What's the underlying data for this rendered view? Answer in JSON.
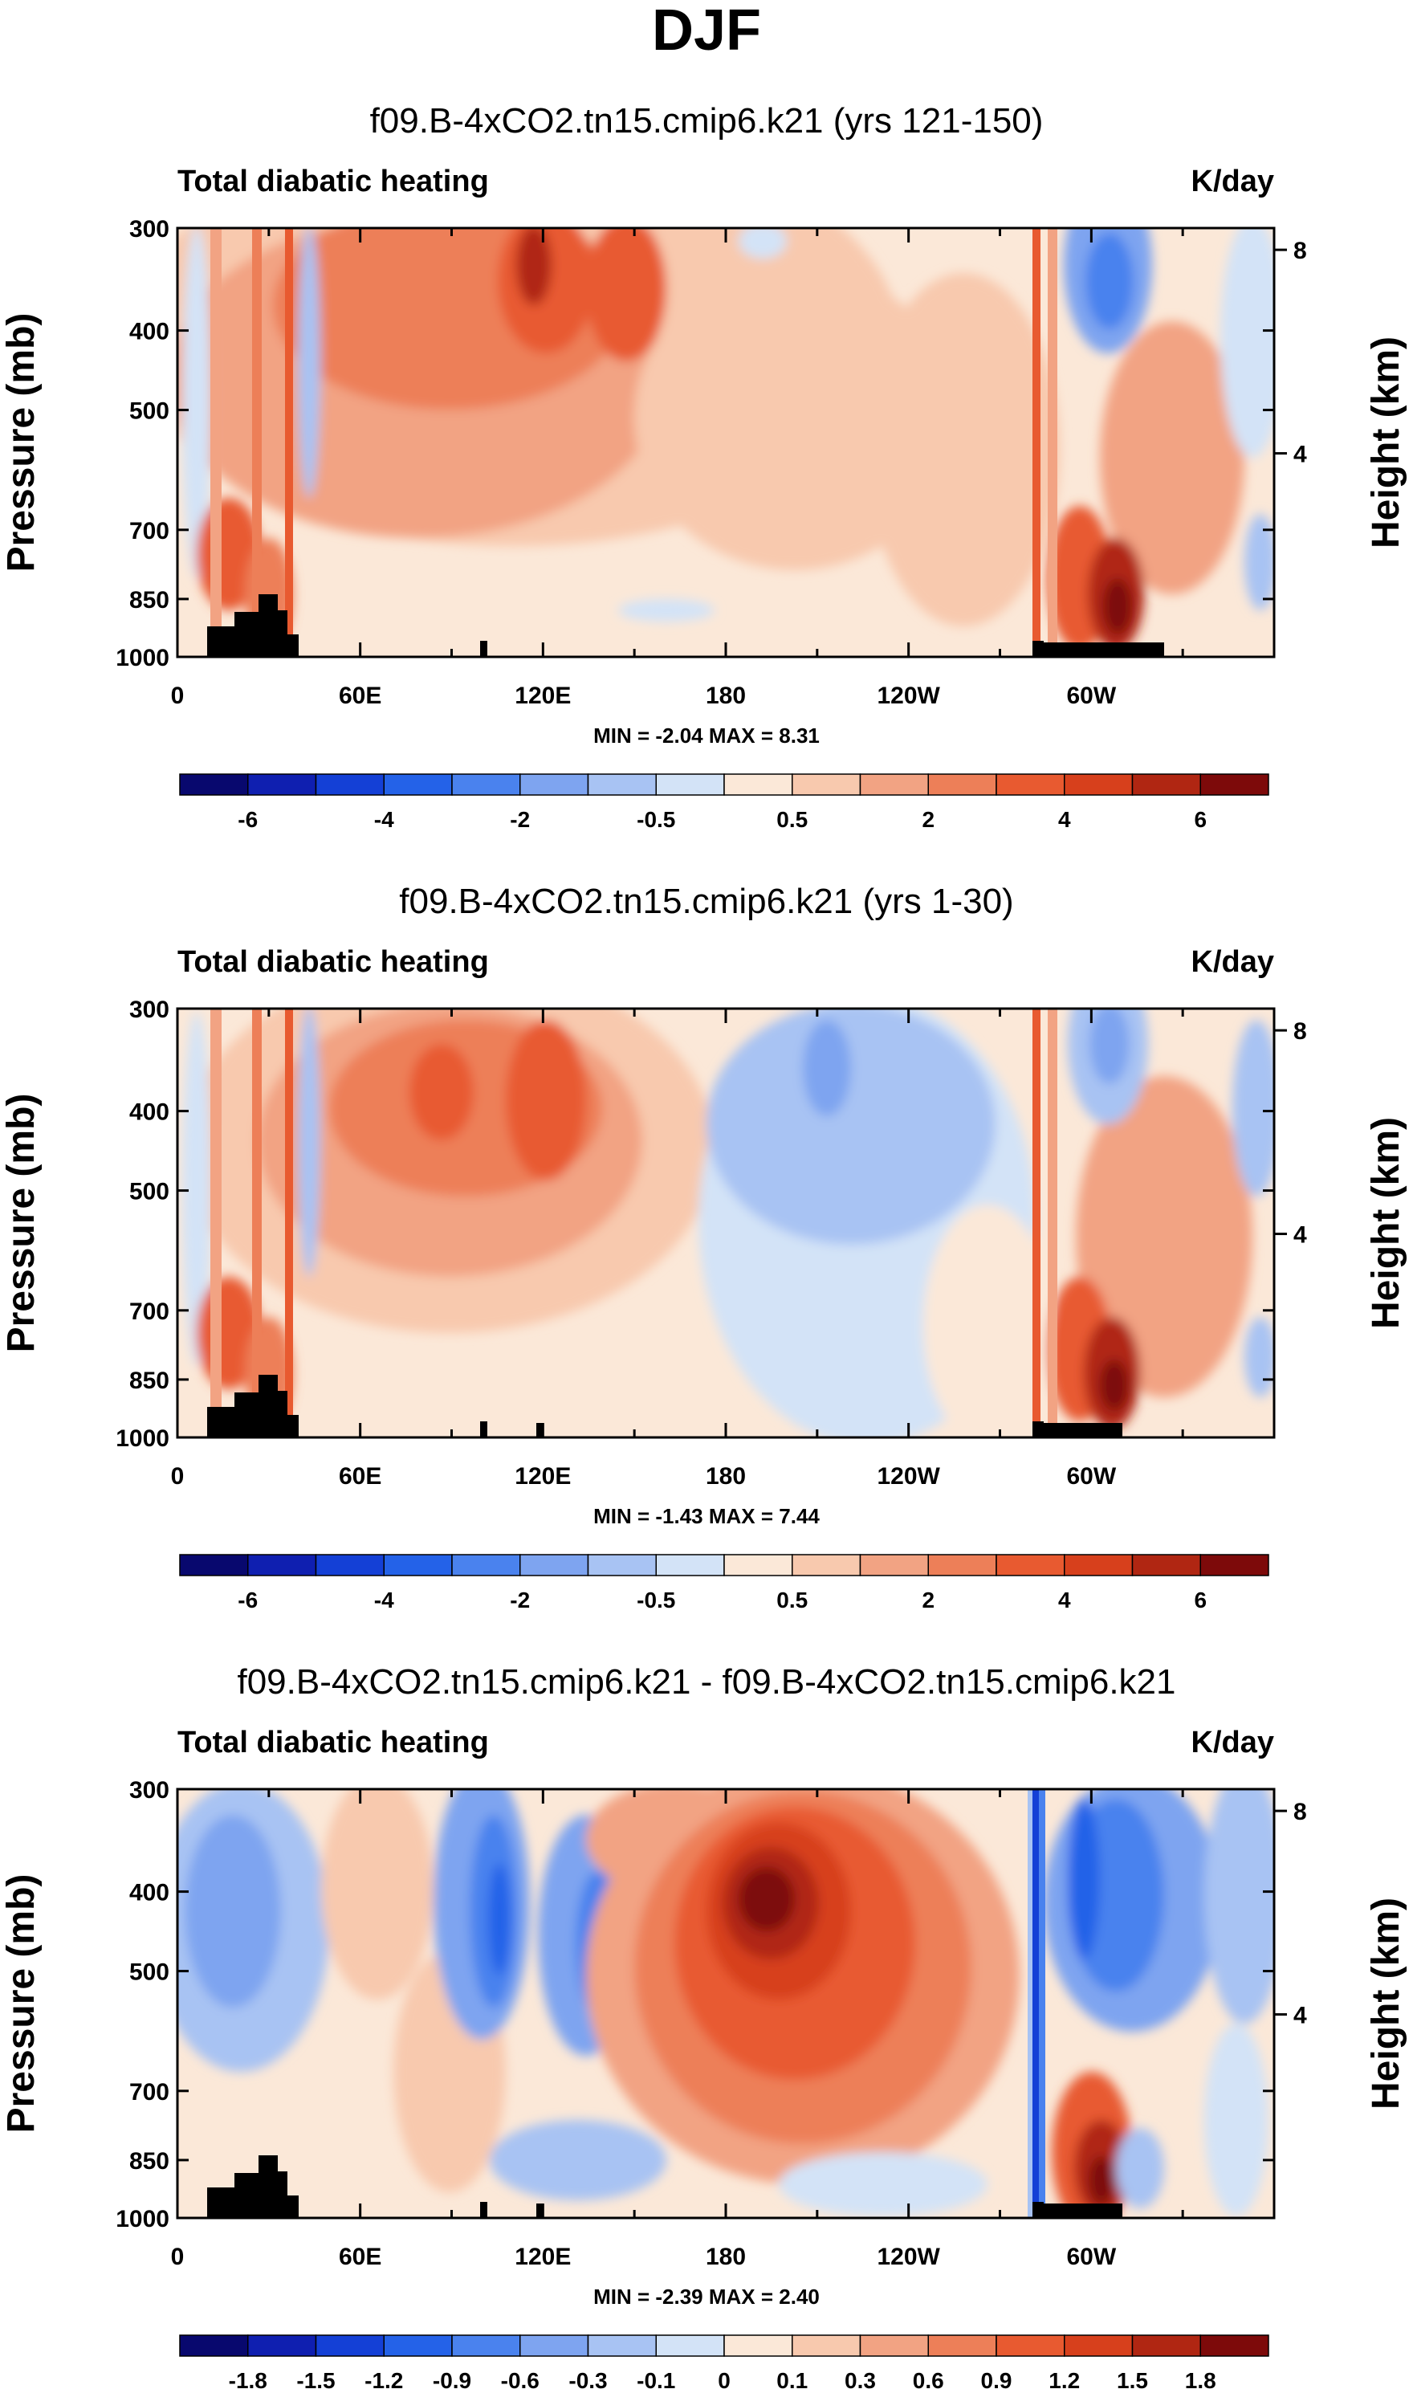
{
  "figure": {
    "title": "DJF"
  },
  "chart_data": [
    {
      "type": "heatmap",
      "title": "f09.B-4xCO2.tn15.cmip6.k21 (yrs 121-150)",
      "left_label": "Total diabatic heating",
      "right_label": "K/day",
      "ylabel": "Pressure (mb)",
      "ylabel_right": "Height (km)",
      "x_ticks": [
        "0",
        "60E",
        "120E",
        "180",
        "120W",
        "60W"
      ],
      "y_ticks": [
        "300",
        "400",
        "500",
        "700",
        "850",
        "1000"
      ],
      "y_ticks_right": [
        "8",
        "4"
      ],
      "stats": "MIN =  -2.04   MAX =   8.31",
      "colorbar_labels": [
        "-6",
        "-4",
        "-2",
        "-0.5",
        "0.5",
        "2",
        "4",
        "6"
      ],
      "colorbar_levels": [
        -7,
        -6,
        -5,
        -4,
        -3,
        -2,
        -1,
        -0.5,
        0,
        0.5,
        1,
        2,
        3,
        4,
        5,
        6,
        7
      ],
      "min": -2.04,
      "max": 8.31
    },
    {
      "type": "heatmap",
      "title": "f09.B-4xCO2.tn15.cmip6.k21 (yrs 1-30)",
      "left_label": "Total diabatic heating",
      "right_label": "K/day",
      "ylabel": "Pressure (mb)",
      "ylabel_right": "Height (km)",
      "x_ticks": [
        "0",
        "60E",
        "120E",
        "180",
        "120W",
        "60W"
      ],
      "y_ticks": [
        "300",
        "400",
        "500",
        "700",
        "850",
        "1000"
      ],
      "y_ticks_right": [
        "8",
        "4"
      ],
      "stats": "MIN =  -1.43   MAX =   7.44",
      "colorbar_labels": [
        "-6",
        "-4",
        "-2",
        "-0.5",
        "0.5",
        "2",
        "4",
        "6"
      ],
      "colorbar_levels": [
        -7,
        -6,
        -5,
        -4,
        -3,
        -2,
        -1,
        -0.5,
        0,
        0.5,
        1,
        2,
        3,
        4,
        5,
        6,
        7
      ],
      "min": -1.43,
      "max": 7.44
    },
    {
      "type": "heatmap",
      "title": "f09.B-4xCO2.tn15.cmip6.k21 - f09.B-4xCO2.tn15.cmip6.k21",
      "left_label": "Total diabatic heating",
      "right_label": "K/day",
      "ylabel": "Pressure (mb)",
      "ylabel_right": "Height (km)",
      "x_ticks": [
        "0",
        "60E",
        "120E",
        "180",
        "120W",
        "60W"
      ],
      "y_ticks": [
        "300",
        "400",
        "500",
        "700",
        "850",
        "1000"
      ],
      "y_ticks_right": [
        "8",
        "4"
      ],
      "stats": "MIN =  -2.39   MAX =   2.40",
      "colorbar_labels": [
        "-1.8",
        "-1.5",
        "-1.2",
        "-0.9",
        "-0.6",
        "-0.3",
        "-0.1",
        "0",
        "0.1",
        "0.3",
        "0.6",
        "0.9",
        "1.2",
        "1.5",
        "1.8"
      ],
      "colorbar_levels": [
        -2.1,
        -1.8,
        -1.5,
        -1.2,
        -0.9,
        -0.6,
        -0.3,
        -0.1,
        0,
        0.1,
        0.3,
        0.6,
        0.9,
        1.2,
        1.5,
        1.8,
        2.1
      ],
      "min": -2.39,
      "max": 2.4
    }
  ],
  "colors": {
    "palette": [
      "#08086e",
      "#0f1fb0",
      "#1440d6",
      "#2462e8",
      "#4a82ee",
      "#7ea4f0",
      "#a8c3f3",
      "#d3e3f7",
      "#fbe8d8",
      "#f8c9ae",
      "#f2a383",
      "#ed7f58",
      "#e85a30",
      "#d7401c",
      "#b02612",
      "#7d0a0a"
    ],
    "land": "#000000"
  }
}
